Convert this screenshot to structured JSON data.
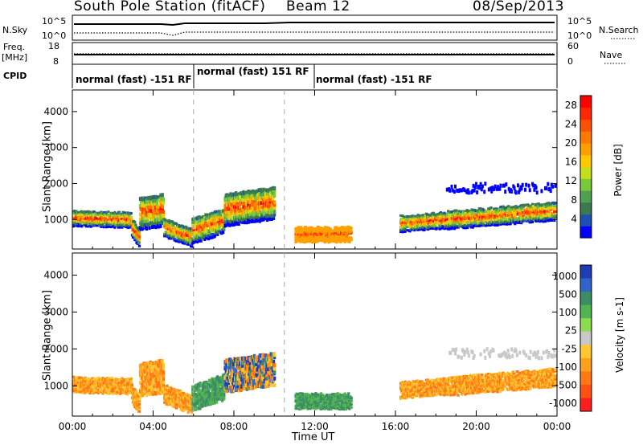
{
  "header": {
    "station": "South Pole Station (fitACF)",
    "beam": "Beam 12",
    "date": "08/Sep/2013"
  },
  "strip_labels": {
    "nsky": "N.Sky",
    "nsky_hi": "10^5",
    "nsky_lo": "10^0",
    "nsearch": "N.Search",
    "nsearch_hi": "10^5",
    "nsearch_lo": "10^0",
    "freq_line1": "Freq.",
    "freq_line2": "[MHz]",
    "freq_hi": "18",
    "freq_lo": "8",
    "nave": "Nave",
    "nave_hi": "60",
    "nave_lo": "0",
    "cpid": "CPID"
  },
  "cpid_segments": [
    {
      "label": "normal (fast) -151 RF",
      "start": "00:00",
      "end": "06:00"
    },
    {
      "label": "normal (fast) 151 RF",
      "start": "06:00",
      "end": "10:30"
    },
    {
      "label": "normal (fast) -151 RF",
      "start": "10:30",
      "end": "24:00"
    }
  ],
  "chart_data": [
    {
      "type": "heatmap",
      "quantity": "Power",
      "ylabel": "Slant Range [km]",
      "yticks": [
        1000,
        2000,
        3000,
        4000
      ],
      "ylim": [
        180,
        4600
      ],
      "colorbar_label": "Power [dB]",
      "colorbar_ticks": [
        "4",
        "8",
        "12",
        "16",
        "20",
        "24",
        "28"
      ],
      "colors": [
        "#0000ff",
        "#1e50b4",
        "#3c7850",
        "#50a050",
        "#78c83c",
        "#c8dc1e",
        "#ffc800",
        "#ffa000",
        "#ff7800",
        "#ff5000",
        "#ff2800",
        "#ff0000"
      ],
      "xlim_hours": [
        0,
        24
      ]
    },
    {
      "type": "heatmap",
      "quantity": "Velocity",
      "ylabel": "Slant Range [km]",
      "yticks": [
        1000,
        2000,
        3000,
        4000
      ],
      "ylim": [
        180,
        4600
      ],
      "colorbar_label": "Velocity [m s-1]",
      "colorbar_ticks": [
        "1000",
        "500",
        "100",
        "25",
        "-25",
        "-100",
        "-500",
        "-1000"
      ],
      "colors": [
        "#1e3cb4",
        "#3264c8",
        "#3c8c64",
        "#50b450",
        "#8cdc50",
        "#c8c8c8",
        "#ffc832",
        "#ffa01e",
        "#ff7814",
        "#ff5014",
        "#ff1e1e"
      ],
      "xlim_hours": [
        0,
        24
      ]
    }
  ],
  "xaxis": {
    "label": "Time UT",
    "ticks": [
      "00:00",
      "04:00",
      "08:00",
      "12:00",
      "16:00",
      "20:00",
      "00:00"
    ]
  }
}
